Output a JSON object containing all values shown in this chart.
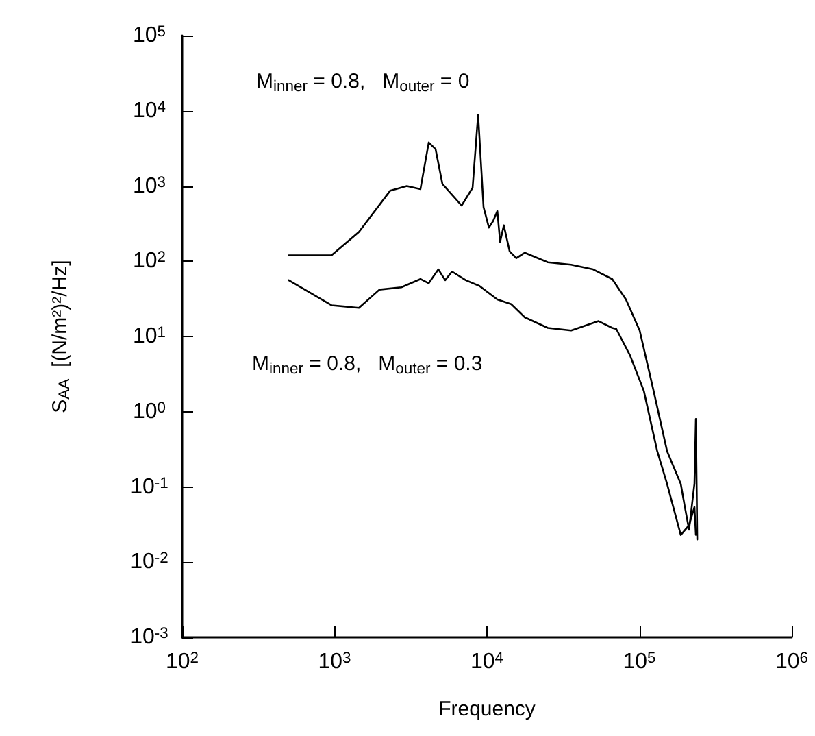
{
  "chart_data": {
    "type": "line",
    "xlabel": "Frequency",
    "ylabel": "S$_{AA}$  [(N/m²)²/Hz]",
    "log": "xy",
    "grid": false,
    "marker": "none",
    "line_style": "solid",
    "xlim": [
      100,
      1000000
    ],
    "ylim": [
      0.001,
      100000
    ],
    "xticks": [
      {
        "value": 100,
        "label": "10$^{2}$"
      },
      {
        "value": 1000,
        "label": "10$^{3}$"
      },
      {
        "value": 10000,
        "label": "10$^{4}$"
      },
      {
        "value": 100000,
        "label": "10$^{5}$"
      },
      {
        "value": 1000000,
        "label": "10$^{6}$"
      }
    ],
    "yticks": [
      {
        "value": 0.001,
        "label": "10$^{-3}$"
      },
      {
        "value": 0.01,
        "label": "10$^{-2}$"
      },
      {
        "value": 0.1,
        "label": "10$^{-1}$"
      },
      {
        "value": 1,
        "label": "10$^{0}$"
      },
      {
        "value": 10,
        "label": "10$^{1}$"
      },
      {
        "value": 100,
        "label": "10$^{2}$"
      },
      {
        "value": 1000,
        "label": "10$^{3}$"
      },
      {
        "value": 10000,
        "label": "10$^{4}$"
      },
      {
        "value": 100000,
        "label": "10$^{5}$"
      }
    ],
    "annotations": [
      "M$_{inner}$ = 0.8,   M$_{outer}$ = 0",
      "M$_{inner}$ = 0.8,   M$_{outer}$ = 0.3"
    ],
    "series": [
      {
        "color": "#000000",
        "x": [
          500,
          955,
          1445,
          2320,
          2980,
          3660,
          4150,
          4600,
          5100,
          6820,
          8050,
          8750,
          9120,
          9500,
          10300,
          11000,
          11700,
          12200,
          12900,
          14100,
          15600,
          17700,
          25100,
          35700,
          49700,
          61200,
          66400,
          81700,
          100500,
          124000,
          152000,
          187000,
          199000,
          212000,
          230000,
          235000,
          240000
        ],
        "values": [
          120,
          120,
          245,
          870,
          1000,
          910,
          3800,
          3100,
          1070,
          550,
          950,
          8900,
          2140,
          525,
          280,
          345,
          465,
          180,
          300,
          135,
          110,
          130,
          97,
          90,
          78,
          63,
          58,
          31,
          12,
          1.9,
          0.3,
          0.11,
          0.054,
          0.027,
          0.11,
          0.8,
          0.02
        ]
      },
      {
        "color": "#000000",
        "x": [
          500,
          955,
          1445,
          1970,
          2740,
          3660,
          4150,
          4800,
          5320,
          5900,
          7260,
          8930,
          11700,
          14400,
          17700,
          25100,
          35700,
          54000,
          66400,
          70600,
          86900,
          107000,
          131000,
          152000,
          187000,
          212000,
          230000,
          235000
        ],
        "values": [
          56,
          26,
          24,
          42,
          45,
          58,
          51,
          78,
          56,
          73,
          56,
          47,
          31,
          27,
          18,
          13,
          12,
          16,
          13,
          12.6,
          5.6,
          1.9,
          0.3,
          0.11,
          0.023,
          0.031,
          0.054,
          0.023
        ]
      }
    ]
  }
}
